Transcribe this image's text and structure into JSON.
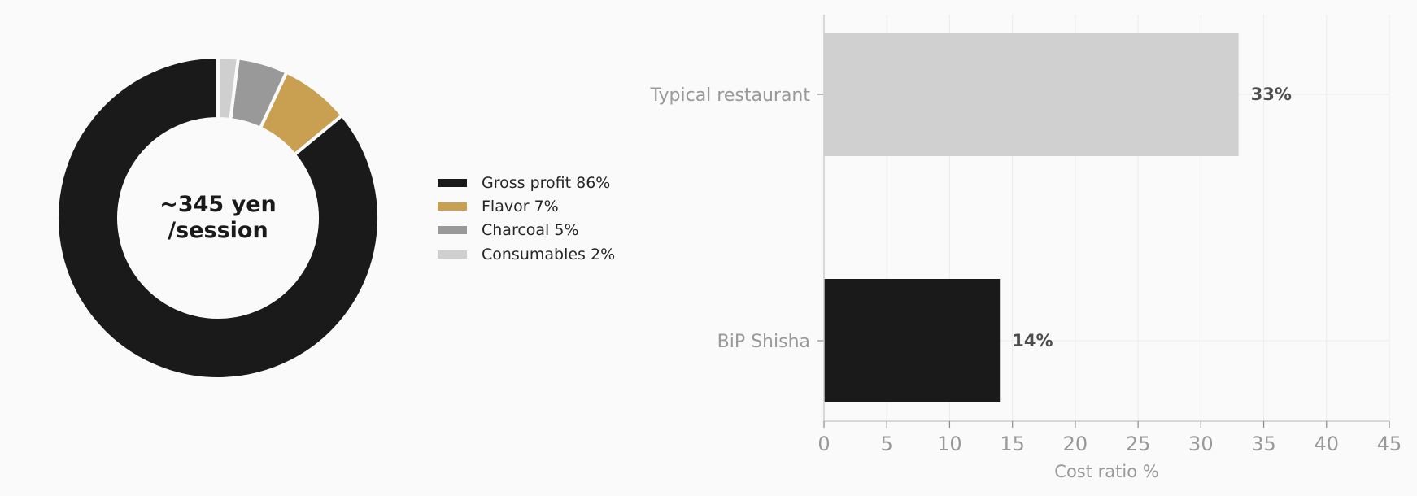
{
  "chart_data": [
    {
      "type": "pie",
      "donut": true,
      "center_label": [
        "~345 yen",
        "/session"
      ],
      "slices": [
        {
          "label": "Gross profit 86%",
          "value": 86,
          "color": "#1a1a1a"
        },
        {
          "label": "Flavor 7%",
          "value": 7,
          "color": "#c9a052"
        },
        {
          "label": "Charcoal 5%",
          "value": 5,
          "color": "#999999"
        },
        {
          "label": "Consumables 2%",
          "value": 2,
          "color": "#cfcfcf"
        }
      ],
      "legend_position": "right"
    },
    {
      "type": "bar",
      "orientation": "horizontal",
      "categories": [
        "Typical restaurant",
        "BiP Shisha"
      ],
      "values": [
        33,
        14
      ],
      "value_labels": [
        "33%",
        "14%"
      ],
      "colors": [
        "#d0d0d0",
        "#1a1a1a"
      ],
      "xlabel": "Cost ratio %",
      "xlim": [
        0,
        45
      ],
      "xticks": [
        "0",
        "5",
        "10",
        "15",
        "20",
        "25",
        "30",
        "35",
        "40",
        "45"
      ],
      "grid": true
    }
  ]
}
